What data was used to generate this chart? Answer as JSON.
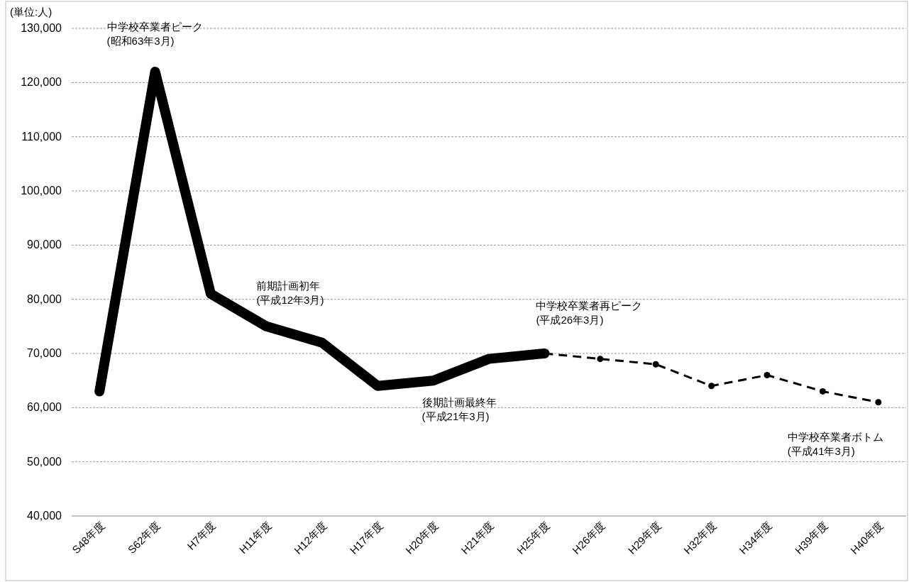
{
  "chart_data": {
    "type": "line",
    "categories": [
      "S48年度",
      "S62年度",
      "H7年度",
      "H11年度",
      "H12年度",
      "H17年度",
      "H20年度",
      "H21年度",
      "H25年度",
      "H26年度",
      "H29年度",
      "H32年度",
      "H34年度",
      "H39年度",
      "H40年度"
    ],
    "series": [
      {
        "color": "#000000",
        "line_style": "solid",
        "marker": "none",
        "values": [
          63000,
          122000,
          81000,
          75000,
          72000,
          64000,
          65000,
          69000,
          70000,
          null,
          null,
          null,
          null,
          null,
          null
        ]
      },
      {
        "color": "#000000",
        "line_style": "dashed",
        "marker": "circle",
        "values": [
          null,
          null,
          null,
          null,
          null,
          null,
          null,
          null,
          70000,
          69000,
          68000,
          64000,
          66000,
          63000,
          61000
        ]
      }
    ],
    "ylim": [
      40000,
      130000
    ],
    "yticks": [
      {
        "value": 40000,
        "label": "40,000"
      },
      {
        "value": 50000,
        "label": "50,000"
      },
      {
        "value": 60000,
        "label": "60,000"
      },
      {
        "value": 70000,
        "label": "70,000"
      },
      {
        "value": 80000,
        "label": "80,000"
      },
      {
        "value": 90000,
        "label": "90,000"
      },
      {
        "value": 100000,
        "label": "100,000"
      },
      {
        "value": 110000,
        "label": "110,000"
      },
      {
        "value": 120000,
        "label": "120,000"
      },
      {
        "value": 130000,
        "label": "130,000"
      }
    ],
    "grid": "y",
    "annotations": [
      "(単位:人)",
      {
        "text": "中学校卒業者ピーク\n(昭和63年3月)",
        "x": "S62年度",
        "y": 122000
      },
      {
        "text": "前期計画初年\n(平成12年3月)",
        "x": "H11年度",
        "y": 75000
      },
      {
        "text": "後期計画最終年\n(平成21年3月)",
        "x": "H20年度",
        "y": 65000
      },
      {
        "text": "中学校卒業者再ピーク\n(平成26年3月)",
        "x": "H25年度",
        "y": 70000
      },
      {
        "text": "中学校卒業者ボトム\n(平成41年3月)",
        "x": "H40年度",
        "y": 61000
      }
    ]
  }
}
